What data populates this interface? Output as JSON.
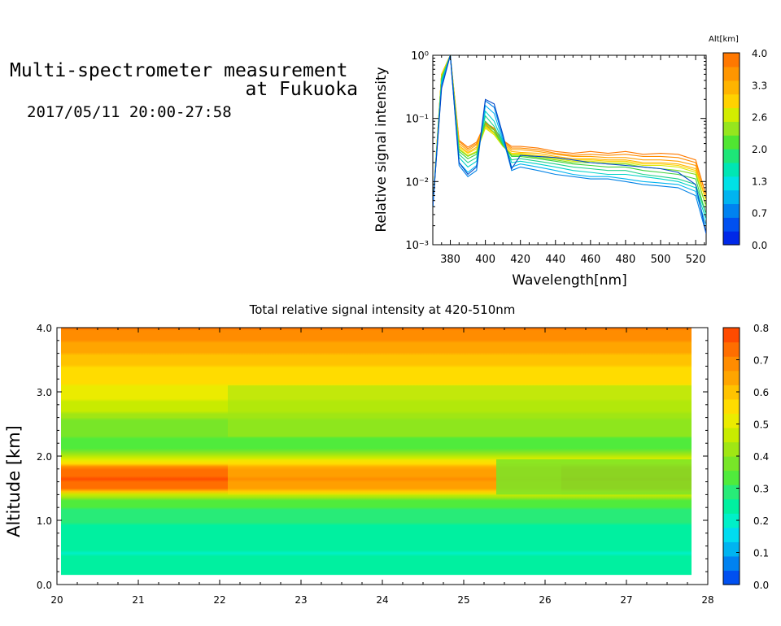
{
  "header": {
    "title_line1": "Multi-spectrometer measurement",
    "title_line2": "at Fukuoka",
    "datetime": "2017/05/11 20:00-27:58"
  },
  "chart_data": [
    {
      "type": "line",
      "xlabel": "Wavelength[nm]",
      "ylabel": "Relative signal intensity",
      "xlim": [
        370,
        526
      ],
      "ylim": [
        0.001,
        1
      ],
      "yscale": "log",
      "x_ticks": [
        "380",
        "400",
        "420",
        "440",
        "460",
        "480",
        "500",
        "520"
      ],
      "y_ticks": [
        "10⁻³",
        "10⁻²",
        "10⁻¹",
        "10⁰"
      ],
      "x": [
        370,
        375,
        380,
        385,
        390,
        395,
        400,
        405,
        410,
        415,
        420,
        430,
        440,
        450,
        460,
        470,
        480,
        490,
        500,
        510,
        520,
        526
      ],
      "series": [
        {
          "alt": 4.0,
          "color": "#ff7a00",
          "values": [
            0.004,
            0.5,
            1.0,
            0.045,
            0.035,
            0.042,
            0.085,
            0.07,
            0.045,
            0.036,
            0.036,
            0.034,
            0.03,
            0.028,
            0.03,
            0.028,
            0.03,
            0.027,
            0.028,
            0.027,
            0.022,
            0.006
          ]
        },
        {
          "alt": 3.7,
          "color": "#ff8c00",
          "values": [
            0.004,
            0.5,
            1.0,
            0.043,
            0.033,
            0.04,
            0.083,
            0.068,
            0.044,
            0.034,
            0.034,
            0.032,
            0.028,
            0.026,
            0.027,
            0.026,
            0.027,
            0.025,
            0.025,
            0.024,
            0.02,
            0.006
          ]
        },
        {
          "alt": 3.4,
          "color": "#ffa000",
          "values": [
            0.004,
            0.5,
            1.0,
            0.04,
            0.031,
            0.038,
            0.08,
            0.065,
            0.042,
            0.032,
            0.032,
            0.03,
            0.027,
            0.025,
            0.025,
            0.024,
            0.024,
            0.022,
            0.022,
            0.021,
            0.018,
            0.005
          ]
        },
        {
          "alt": 3.1,
          "color": "#ffb400",
          "values": [
            0.004,
            0.5,
            1.0,
            0.037,
            0.029,
            0.035,
            0.076,
            0.06,
            0.04,
            0.03,
            0.029,
            0.028,
            0.025,
            0.023,
            0.023,
            0.022,
            0.022,
            0.02,
            0.02,
            0.019,
            0.016,
            0.005
          ]
        },
        {
          "alt": 2.8,
          "color": "#ffd400",
          "values": [
            0.004,
            0.5,
            1.0,
            0.035,
            0.028,
            0.033,
            0.073,
            0.058,
            0.038,
            0.028,
            0.028,
            0.026,
            0.024,
            0.022,
            0.022,
            0.021,
            0.021,
            0.019,
            0.019,
            0.018,
            0.015,
            0.005
          ]
        },
        {
          "alt": 2.4,
          "color": "#d8e800",
          "values": [
            0.004,
            0.45,
            1.0,
            0.033,
            0.026,
            0.03,
            0.07,
            0.055,
            0.036,
            0.027,
            0.027,
            0.025,
            0.023,
            0.021,
            0.021,
            0.02,
            0.02,
            0.018,
            0.018,
            0.017,
            0.014,
            0.004
          ]
        },
        {
          "alt": 2.1,
          "color": "#7ddc1f",
          "values": [
            0.004,
            0.45,
            1.0,
            0.032,
            0.025,
            0.029,
            0.08,
            0.06,
            0.037,
            0.026,
            0.026,
            0.024,
            0.022,
            0.02,
            0.02,
            0.019,
            0.019,
            0.017,
            0.016,
            0.015,
            0.013,
            0.004
          ]
        },
        {
          "alt": 1.8,
          "color": "#3cd23c",
          "values": [
            0.004,
            0.42,
            1.0,
            0.03,
            0.023,
            0.027,
            0.09,
            0.065,
            0.038,
            0.025,
            0.025,
            0.023,
            0.021,
            0.019,
            0.018,
            0.017,
            0.017,
            0.015,
            0.014,
            0.013,
            0.011,
            0.003
          ]
        },
        {
          "alt": 1.5,
          "color": "#20d28c",
          "values": [
            0.004,
            0.4,
            1.0,
            0.027,
            0.02,
            0.024,
            0.11,
            0.075,
            0.04,
            0.022,
            0.023,
            0.021,
            0.019,
            0.017,
            0.016,
            0.015,
            0.015,
            0.013,
            0.012,
            0.011,
            0.009,
            0.003
          ]
        },
        {
          "alt": 1.2,
          "color": "#00d2c8",
          "values": [
            0.004,
            0.38,
            1.0,
            0.024,
            0.017,
            0.021,
            0.13,
            0.09,
            0.042,
            0.02,
            0.021,
            0.019,
            0.017,
            0.015,
            0.014,
            0.013,
            0.013,
            0.012,
            0.011,
            0.01,
            0.008,
            0.0025
          ]
        },
        {
          "alt": 0.9,
          "color": "#00b4f0",
          "values": [
            0.004,
            0.35,
            1.0,
            0.02,
            0.014,
            0.018,
            0.16,
            0.12,
            0.045,
            0.017,
            0.019,
            0.017,
            0.015,
            0.013,
            0.012,
            0.012,
            0.011,
            0.01,
            0.0095,
            0.009,
            0.007,
            0.002
          ]
        },
        {
          "alt": 0.6,
          "color": "#0082e6",
          "values": [
            0.004,
            0.33,
            1.0,
            0.018,
            0.012,
            0.015,
            0.19,
            0.15,
            0.05,
            0.015,
            0.017,
            0.015,
            0.013,
            0.012,
            0.011,
            0.011,
            0.01,
            0.009,
            0.0085,
            0.008,
            0.006,
            0.0015
          ]
        },
        {
          "alt": 0.3,
          "color": "#0046c8",
          "values": [
            0.004,
            0.3,
            1.0,
            0.02,
            0.013,
            0.017,
            0.2,
            0.17,
            0.055,
            0.016,
            0.026,
            0.025,
            0.024,
            0.022,
            0.02,
            0.019,
            0.018,
            0.017,
            0.016,
            0.014,
            0.009,
            0.0015
          ]
        }
      ],
      "colorbar": {
        "title": "Alt[km]",
        "range": [
          0,
          4
        ],
        "tick_labels": [
          "4.0",
          "3.3",
          "2.6",
          "2.0",
          "1.3",
          "0.7",
          "0.0"
        ],
        "colors": [
          "#0028e8",
          "#0050f0",
          "#0082f0",
          "#00b4f0",
          "#00e1e6",
          "#00e6b4",
          "#1ee678",
          "#50e632",
          "#96e61e",
          "#d2ec00",
          "#ffd200",
          "#ffb400",
          "#ff9600",
          "#ff7800"
        ]
      }
    },
    {
      "type": "heatmap",
      "title": "Total relative signal intensity at 420-510nm",
      "ylabel": "Altitude [km]",
      "xlim": [
        20,
        28
      ],
      "ylim": [
        0,
        4
      ],
      "x_ticks": [
        "20",
        "21",
        "22",
        "23",
        "24",
        "25",
        "26",
        "27",
        "28"
      ],
      "y_ticks": [
        "0.0",
        "1.0",
        "2.0",
        "3.0",
        "4.0"
      ],
      "data_x_range": [
        20.05,
        27.8
      ],
      "data_y_range": [
        0.15,
        4.0
      ],
      "value_range": [
        0,
        0.8
      ],
      "altitude_profile": [
        [
          0.15,
          0.25
        ],
        [
          0.5,
          0.22
        ],
        [
          0.9,
          0.26
        ],
        [
          1.3,
          0.33
        ],
        [
          1.42,
          0.5
        ],
        [
          1.5,
          0.73
        ],
        [
          1.65,
          0.76
        ],
        [
          1.8,
          0.74
        ],
        [
          1.92,
          0.5
        ],
        [
          2.1,
          0.34
        ],
        [
          2.5,
          0.37
        ],
        [
          2.7,
          0.45
        ],
        [
          3.0,
          0.52
        ],
        [
          3.4,
          0.58
        ],
        [
          3.7,
          0.64
        ],
        [
          4.0,
          0.72
        ]
      ],
      "colorbar": {
        "tick_labels": [
          "0.8",
          "0.7",
          "0.6",
          "0.5",
          "0.4",
          "0.3",
          "0.2",
          "0.1",
          "0.0"
        ],
        "colors": [
          "#0050f0",
          "#0082f0",
          "#00b4f0",
          "#00dcf0",
          "#00f0c8",
          "#00f0a0",
          "#28eb78",
          "#50eb3c",
          "#78e628",
          "#a0e614",
          "#c8eb00",
          "#ebeb00",
          "#ffdc00",
          "#ffc300",
          "#ffa500",
          "#ff8c00",
          "#ff6e00",
          "#ff4b00"
        ]
      }
    }
  ]
}
